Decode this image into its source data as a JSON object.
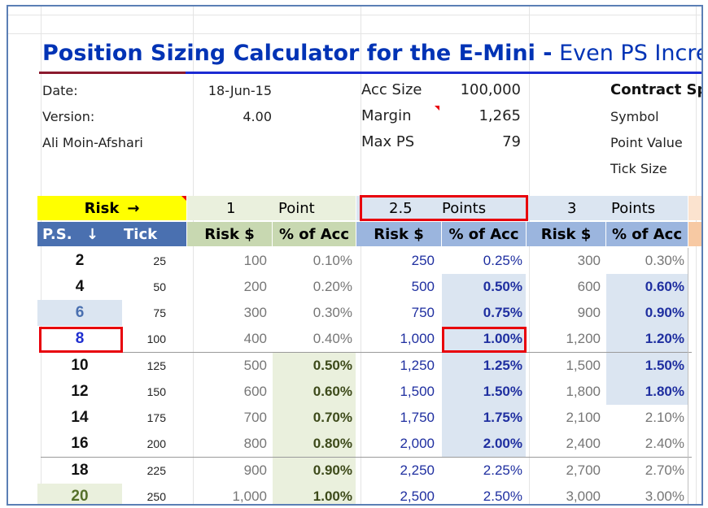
{
  "title": {
    "main": "Position Sizing Calculator for the E-Mini -",
    "sub": " Even PS Incremen"
  },
  "info": {
    "date_label": "Date:",
    "date_value": "18-Jun-15",
    "version_label": "Version:",
    "version_value": "4.00",
    "author": "Ali Moin-Afshari",
    "acc_size_label": "Acc Size",
    "acc_size_value": "100,000",
    "margin_label": "Margin",
    "margin_value": "1,265",
    "max_ps_label": "Max PS",
    "max_ps_value": "79",
    "contract_label": "Contract Sp",
    "symbol_label": "Symbol",
    "point_value_label": "Point Value",
    "tick_size_label": "Tick Size"
  },
  "header": {
    "risk": "Risk",
    "arrow_right": "→",
    "g1_num": "1",
    "g1_unit": "Point",
    "g2_num": "2.5",
    "g2_unit": "Points",
    "g3_num": "3",
    "g3_unit": "Points",
    "ps": "P.S.",
    "arrow_down": "↓",
    "tick": "Tick",
    "risk_dollar": "Risk $",
    "pct_acc": "% of Acc"
  },
  "rows": [
    {
      "ps": "2",
      "tick": "25",
      "r1": "100",
      "p1": "0.10%",
      "r2": "250",
      "p2": "0.25%",
      "r3": "300",
      "p3": "0.30%"
    },
    {
      "ps": "4",
      "tick": "50",
      "r1": "200",
      "p1": "0.20%",
      "r2": "500",
      "p2": "0.50%",
      "r3": "600",
      "p3": "0.60%"
    },
    {
      "ps": "6",
      "tick": "75",
      "r1": "300",
      "p1": "0.30%",
      "r2": "750",
      "p2": "0.75%",
      "r3": "900",
      "p3": "0.90%"
    },
    {
      "ps": "8",
      "tick": "100",
      "r1": "400",
      "p1": "0.40%",
      "r2": "1,000",
      "p2": "1.00%",
      "r3": "1,200",
      "p3": "1.20%"
    },
    {
      "ps": "10",
      "tick": "125",
      "r1": "500",
      "p1": "0.50%",
      "r2": "1,250",
      "p2": "1.25%",
      "r3": "1,500",
      "p3": "1.50%"
    },
    {
      "ps": "12",
      "tick": "150",
      "r1": "600",
      "p1": "0.60%",
      "r2": "1,500",
      "p2": "1.50%",
      "r3": "1,800",
      "p3": "1.80%"
    },
    {
      "ps": "14",
      "tick": "175",
      "r1": "700",
      "p1": "0.70%",
      "r2": "1,750",
      "p2": "1.75%",
      "r3": "2,100",
      "p3": "2.10%"
    },
    {
      "ps": "16",
      "tick": "200",
      "r1": "800",
      "p1": "0.80%",
      "r2": "2,000",
      "p2": "2.00%",
      "r3": "2,400",
      "p3": "2.40%"
    },
    {
      "ps": "18",
      "tick": "225",
      "r1": "900",
      "p1": "0.90%",
      "r2": "2,250",
      "p2": "2.25%",
      "r3": "2,700",
      "p3": "2.70%"
    },
    {
      "ps": "20",
      "tick": "250",
      "r1": "1,000",
      "p1": "1.00%",
      "r2": "2,500",
      "p2": "2.50%",
      "r3": "3,000",
      "p3": "3.00%"
    }
  ],
  "colors": {
    "accent_red": "#e8000b",
    "title_blue": "#0033b5"
  }
}
